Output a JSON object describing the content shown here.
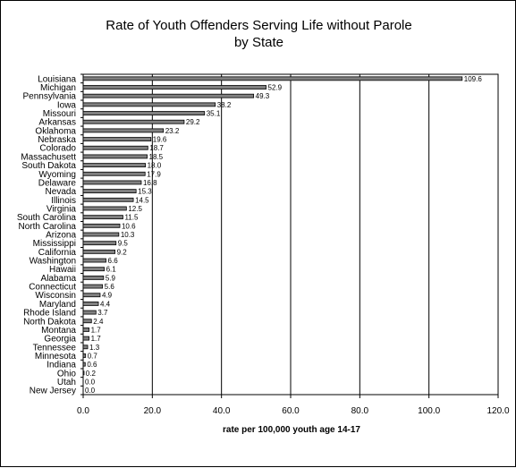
{
  "chart_data": {
    "type": "bar",
    "orientation": "horizontal",
    "title_line1": "Rate of Youth Offenders Serving Life without Parole",
    "title_line2": "by State",
    "xlabel": "rate per 100,000 youth age 14-17",
    "xlim": [
      0,
      120
    ],
    "xticks": [
      "0.0",
      "20.0",
      "40.0",
      "60.0",
      "80.0",
      "100.0",
      "120.0"
    ],
    "grid": "vertical",
    "bar_color": "#808080",
    "categories": [
      "Louisiana",
      "Michigan",
      "Pennsylvania",
      "Iowa",
      "Missouri",
      "Arkansas",
      "Oklahoma",
      "Nebraska",
      "Colorado",
      "Massachusett",
      "South Dakota",
      "Wyoming",
      "Delaware",
      "Nevada",
      "Illinois",
      "Virginia",
      "South Carolina",
      "North Carolina",
      "Arizona",
      "Mississippi",
      "California",
      "Washington",
      "Hawaii",
      "Alabama",
      "Connecticut",
      "Wisconsin",
      "Maryland",
      "Rhode Island",
      "North Dakota",
      "Montana",
      "Georgia",
      "Tennessee",
      "Minnesota",
      "Indiana",
      "Ohio",
      "Utah",
      "New Jersey"
    ],
    "values": [
      109.6,
      52.9,
      49.3,
      38.2,
      35.1,
      29.2,
      23.2,
      19.6,
      18.7,
      18.5,
      18.0,
      17.9,
      16.8,
      15.3,
      14.5,
      12.5,
      11.5,
      10.6,
      10.3,
      9.5,
      9.2,
      6.6,
      6.1,
      5.9,
      5.6,
      4.9,
      4.4,
      3.7,
      2.4,
      1.7,
      1.7,
      1.3,
      0.7,
      0.6,
      0.2,
      0.0,
      0.0
    ],
    "value_labels": [
      "109.6",
      "52.9",
      "49.3",
      "38.2",
      "35.1",
      "29.2",
      "23.2",
      "19.6",
      "18.7",
      "18.5",
      "18.0",
      "17.9",
      "16.8",
      "15.3",
      "14.5",
      "12.5",
      "11.5",
      "10.6",
      "10.3",
      "9.5",
      "9.2",
      "6.6",
      "6.1",
      "5.9",
      "5.6",
      "4.9",
      "4.4",
      "3.7",
      "2.4",
      "1.7",
      "1.7",
      "1.3",
      "0.7",
      "0.6",
      "0.2",
      "0.0",
      "0.0"
    ]
  }
}
